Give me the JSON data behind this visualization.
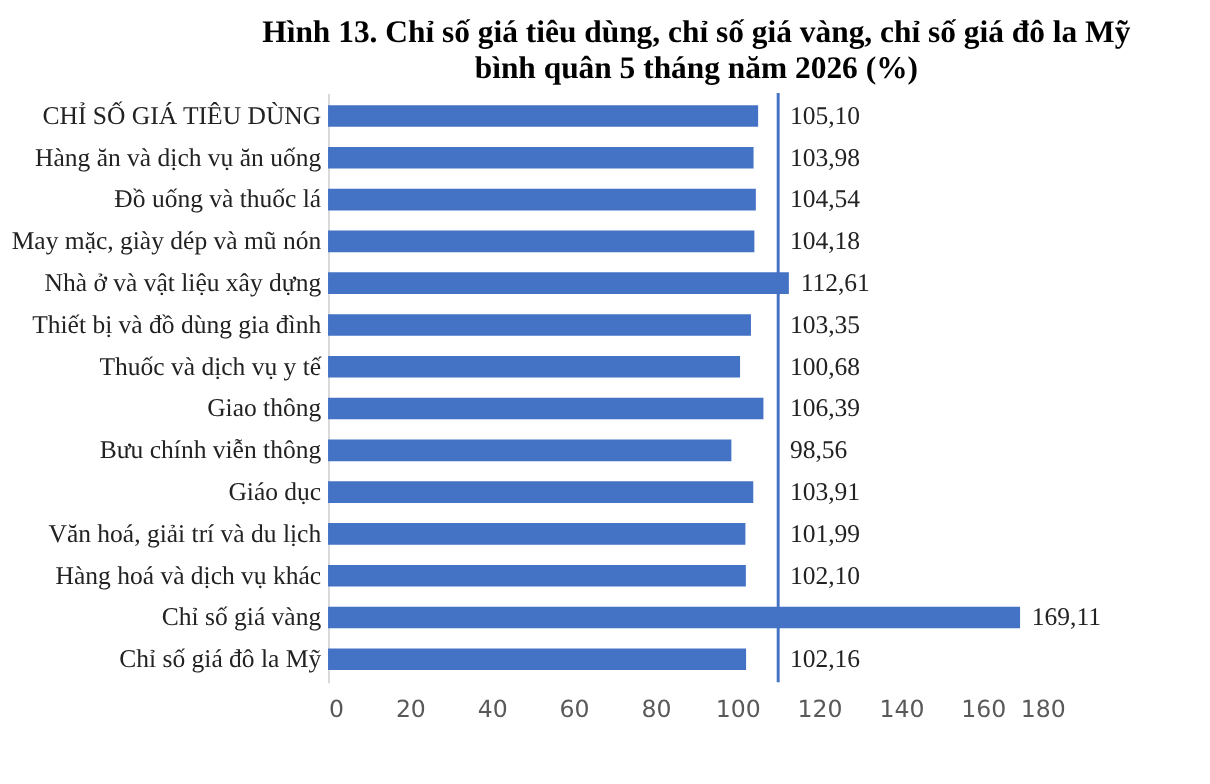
{
  "chart_data": {
    "type": "bar",
    "orientation": "horizontal",
    "title": [
      "Hình 13. Chỉ số giá tiêu dùng, chỉ số giá vàng, chỉ số giá đô la Mỹ",
      "bình quân 5 tháng năm 2026 (%)"
    ],
    "categories": [
      "CHỈ SỐ GIÁ TIÊU DÙNG",
      "Hàng ăn và dịch vụ ăn uống",
      "Đồ uống và thuốc lá",
      "May mặc, giày dép và mũ nón",
      "Nhà ở và vật liệu xây dựng",
      "Thiết bị và đồ dùng gia đình",
      "Thuốc và dịch vụ y tế",
      "Giao thông",
      "Bưu chính viễn thông",
      "Giáo dục",
      "Văn hoá, giải trí và du lịch",
      "Hàng hoá và dịch vụ khác",
      "Chỉ số giá vàng",
      "Chỉ số giá đô la Mỹ"
    ],
    "values": [
      105.1,
      103.98,
      104.54,
      104.18,
      112.61,
      103.35,
      100.68,
      106.39,
      98.56,
      103.91,
      101.99,
      102.1,
      169.11,
      102.16
    ],
    "value_labels": [
      "105,10",
      "103,98",
      "104,54",
      "104,18",
      "112,61",
      "103,35",
      "100,68",
      "106,39",
      "98,56",
      "103,91",
      "101,99",
      "102,10",
      "169,11",
      "102,16"
    ],
    "color": "#4472c4",
    "xlim": [
      0,
      180
    ],
    "xticks": [
      0,
      20,
      40,
      60,
      80,
      100,
      120,
      140,
      160,
      180
    ],
    "grid": false,
    "ref_lines": [
      {
        "axis": "x",
        "value": 110,
        "color": "#4472c4"
      }
    ]
  }
}
